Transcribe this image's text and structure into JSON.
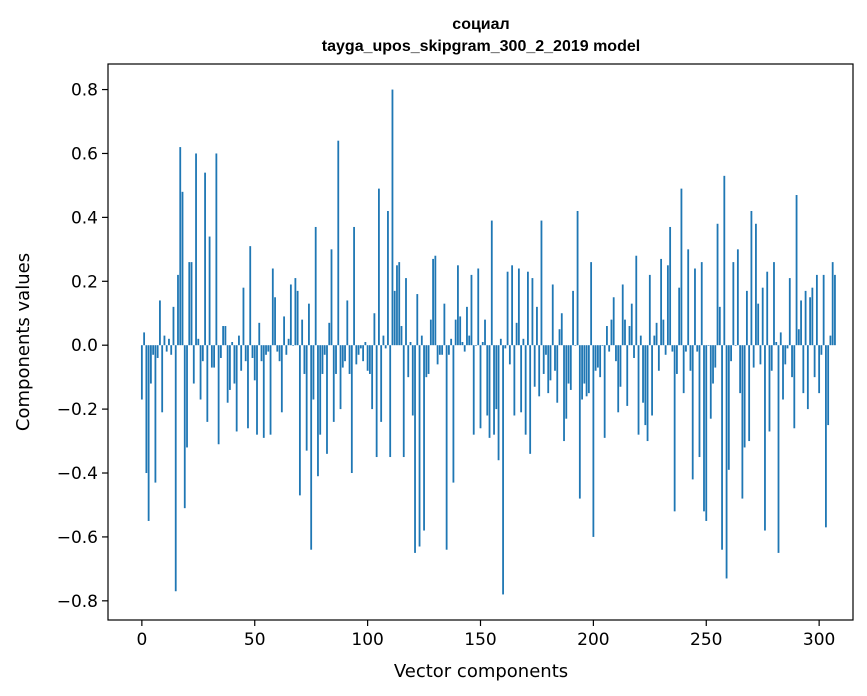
{
  "chart_data": {
    "type": "bar",
    "title": [
      "социал",
      "tayga_upos_skipgram_300_2_2019 model"
    ],
    "xlabel": "Vector components",
    "ylabel": "Components values",
    "xlim": [
      -15,
      315
    ],
    "ylim": [
      -0.86,
      0.88
    ],
    "xticks": [
      0,
      50,
      100,
      150,
      200,
      250,
      300
    ],
    "yticks": [
      -0.8,
      -0.6,
      -0.4,
      -0.2,
      0.0,
      0.2,
      0.4,
      0.6,
      0.8
    ],
    "ytick_labels": [
      "−0.8",
      "−0.6",
      "−0.4",
      "−0.2",
      "0.0",
      "0.2",
      "0.4",
      "0.6",
      "0.8"
    ],
    "bar_color": "#1f77b4",
    "values": [
      -0.17,
      0.04,
      -0.4,
      -0.55,
      -0.12,
      -0.03,
      -0.43,
      -0.04,
      0.14,
      -0.21,
      0.03,
      -0.02,
      0.02,
      -0.03,
      0.12,
      -0.77,
      0.22,
      0.62,
      0.48,
      -0.51,
      -0.32,
      0.26,
      0.26,
      -0.12,
      0.6,
      0.02,
      -0.17,
      -0.05,
      0.54,
      -0.24,
      0.34,
      -0.07,
      -0.07,
      0.6,
      -0.31,
      -0.04,
      0.06,
      0.06,
      -0.18,
      -0.14,
      0.01,
      -0.12,
      -0.27,
      0.03,
      -0.08,
      0.18,
      -0.05,
      -0.26,
      0.31,
      -0.04,
      -0.11,
      -0.28,
      0.07,
      -0.05,
      -0.29,
      -0.03,
      -0.02,
      -0.28,
      0.24,
      0.15,
      -0.02,
      -0.05,
      -0.21,
      0.09,
      -0.03,
      0.02,
      0.19,
      0.0,
      0.21,
      0.17,
      -0.47,
      0.08,
      -0.09,
      -0.33,
      0.13,
      -0.64,
      -0.17,
      0.37,
      -0.41,
      -0.28,
      -0.09,
      -0.03,
      -0.34,
      0.07,
      0.3,
      -0.24,
      -0.09,
      0.64,
      -0.2,
      -0.07,
      -0.05,
      0.14,
      -0.09,
      -0.4,
      0.37,
      -0.06,
      -0.03,
      -0.01,
      -0.05,
      0.01,
      -0.08,
      -0.09,
      -0.2,
      0.1,
      -0.35,
      0.49,
      -0.24,
      0.03,
      -0.01,
      0.42,
      -0.35,
      0.8,
      0.17,
      0.25,
      0.26,
      0.06,
      -0.35,
      0.21,
      -0.1,
      0.01,
      -0.22,
      -0.65,
      0.16,
      -0.63,
      0.03,
      -0.58,
      -0.1,
      -0.09,
      0.08,
      0.27,
      0.28,
      -0.06,
      -0.03,
      -0.03,
      0.13,
      -0.64,
      -0.03,
      0.02,
      -0.43,
      0.08,
      0.25,
      0.09,
      0.01,
      -0.02,
      0.12,
      0.03,
      0.22,
      -0.28,
      0.0,
      0.24,
      -0.26,
      0.01,
      0.08,
      -0.22,
      -0.29,
      0.39,
      -0.28,
      -0.2,
      -0.36,
      0.02,
      -0.78,
      -0.01,
      0.23,
      -0.06,
      0.25,
      -0.22,
      0.07,
      0.24,
      -0.21,
      0.02,
      -0.28,
      0.23,
      -0.34,
      0.21,
      -0.13,
      0.12,
      -0.16,
      0.39,
      -0.09,
      -0.03,
      -0.15,
      -0.11,
      0.19,
      -0.08,
      -0.18,
      0.05,
      0.1,
      -0.3,
      -0.23,
      -0.12,
      -0.14,
      0.17,
      0.0,
      0.42,
      -0.48,
      -0.17,
      -0.12,
      -0.16,
      -0.15,
      0.26,
      -0.6,
      -0.08,
      -0.07,
      -0.1,
      0.0,
      -0.29,
      0.06,
      -0.02,
      0.08,
      0.15,
      -0.05,
      -0.21,
      -0.13,
      0.19,
      0.08,
      -0.19,
      0.06,
      0.13,
      -0.04,
      0.28,
      -0.28,
      0.03,
      -0.18,
      -0.25,
      -0.3,
      0.22,
      -0.22,
      0.03,
      0.07,
      -0.08,
      0.27,
      0.08,
      -0.03,
      0.25,
      0.37,
      -0.02,
      -0.52,
      -0.09,
      0.18,
      0.49,
      -0.15,
      -0.02,
      0.3,
      -0.08,
      -0.42,
      0.24,
      -0.02,
      -0.35,
      0.26,
      -0.52,
      -0.55,
      0.0,
      -0.23,
      -0.12,
      -0.07,
      0.38,
      0.12,
      -0.64,
      0.53,
      -0.73,
      -0.39,
      -0.05,
      0.26,
      0.0,
      0.3,
      -0.15,
      -0.48,
      -0.32,
      0.17,
      -0.3,
      0.42,
      -0.07,
      0.38,
      0.13,
      -0.06,
      0.18,
      -0.58,
      0.23,
      -0.27,
      -0.08,
      0.26,
      0.01,
      -0.65,
      0.04,
      -0.17,
      -0.06,
      -0.01,
      0.21,
      -0.1,
      -0.26,
      0.47,
      0.05,
      0.14,
      -0.15,
      0.17,
      -0.2,
      0.15,
      0.18,
      -0.1,
      0.22,
      -0.15,
      -0.03,
      0.22,
      -0.57,
      -0.25,
      0.03,
      0.26,
      0.22
    ]
  }
}
